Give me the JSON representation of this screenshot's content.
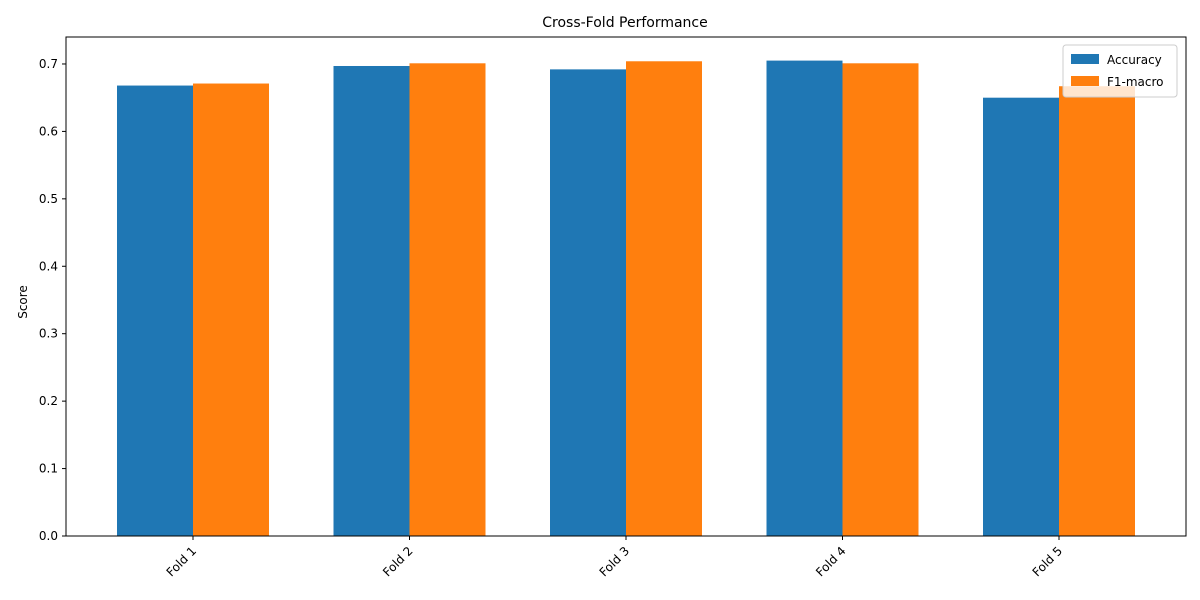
{
  "chart_data": {
    "type": "bar",
    "title": "Cross-Fold Performance",
    "xlabel": "",
    "ylabel": "Score",
    "categories": [
      "Fold 1",
      "Fold 2",
      "Fold 3",
      "Fold 4",
      "Fold 5"
    ],
    "series": [
      {
        "name": "Accuracy",
        "values": [
          0.668,
          0.697,
          0.692,
          0.705,
          0.65
        ],
        "color": "#1f77b4"
      },
      {
        "name": "F1-macro",
        "values": [
          0.671,
          0.701,
          0.704,
          0.701,
          0.667
        ],
        "color": "#ff7f0e"
      }
    ],
    "ylim": [
      0,
      0.74
    ],
    "yticks": [
      0.0,
      0.1,
      0.2,
      0.3,
      0.4,
      0.5,
      0.6,
      0.7
    ],
    "ytick_labels": [
      "0.0",
      "0.1",
      "0.2",
      "0.3",
      "0.4",
      "0.5",
      "0.6",
      "0.7"
    ],
    "grid": false,
    "legend": "top-right"
  }
}
